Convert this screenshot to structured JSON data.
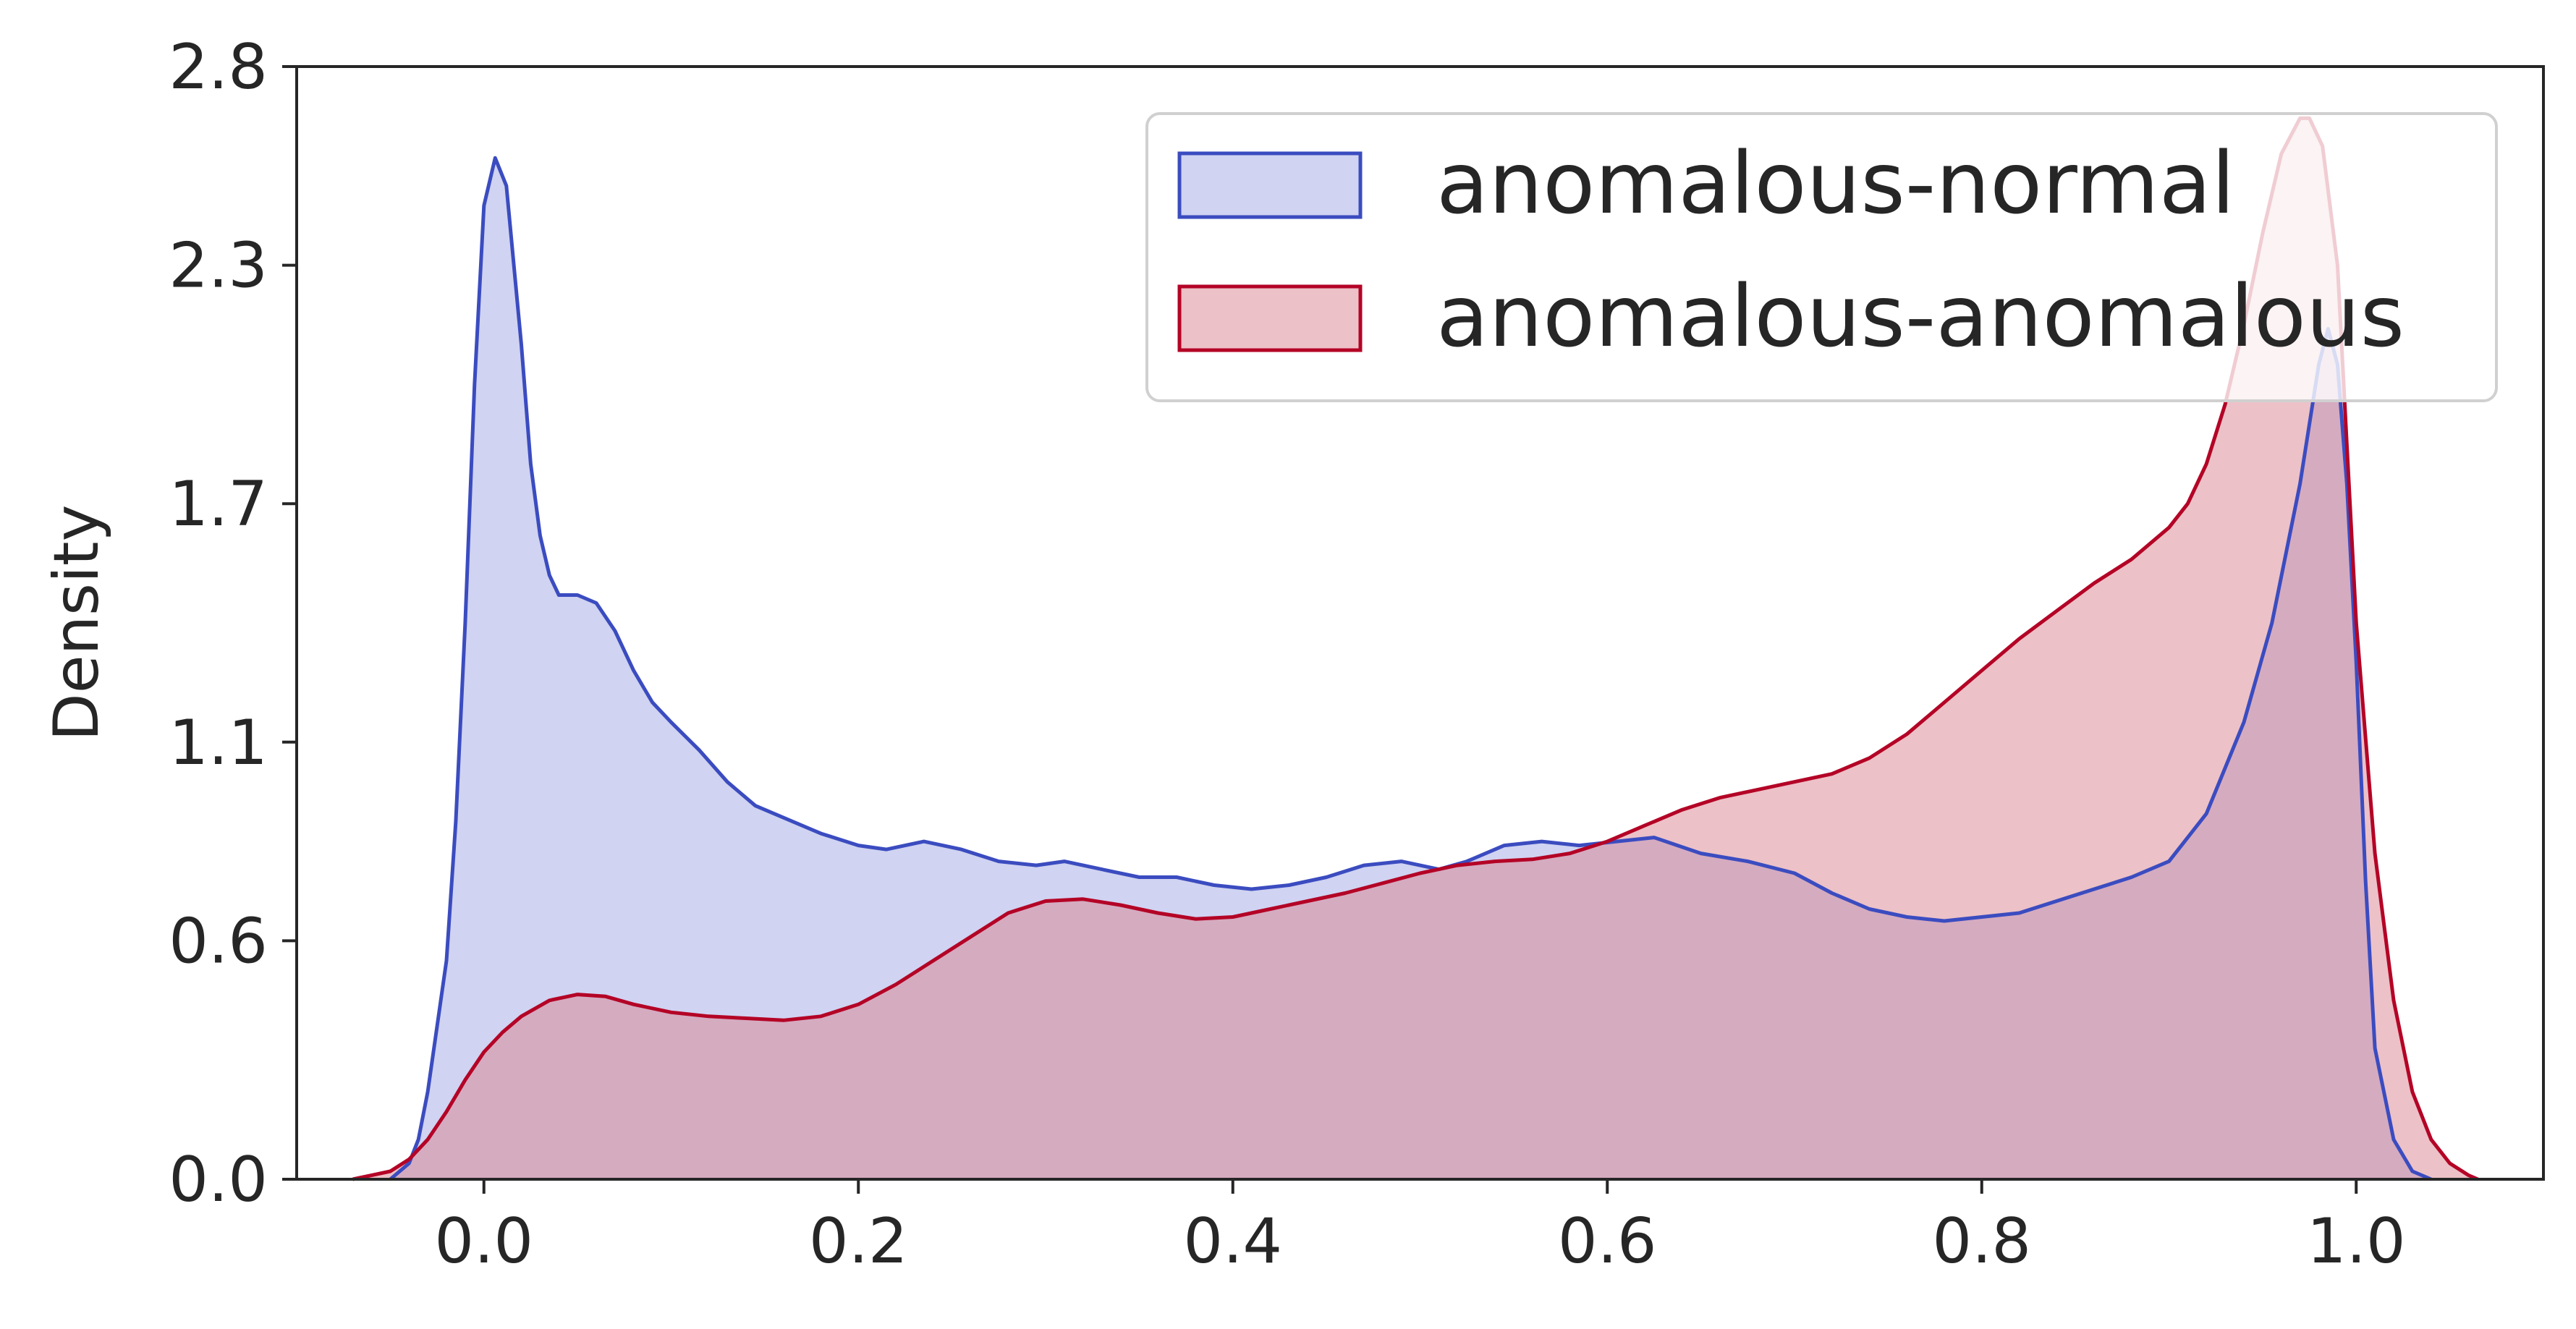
{
  "chart_data": {
    "type": "area",
    "title": "",
    "xlabel": "",
    "ylabel": "Density",
    "xlim": [
      -0.1,
      1.1
    ],
    "ylim": [
      0.0,
      2.8
    ],
    "x_ticks": [
      "0.0",
      "0.2",
      "0.4",
      "0.6",
      "0.8",
      "1.0"
    ],
    "y_ticks": [
      "0.0",
      "0.6",
      "1.1",
      "1.7",
      "2.3",
      "2.8"
    ],
    "grid": false,
    "legend_position": "top-right",
    "series": [
      {
        "name": "anomalous-normal",
        "color": "#3b4cc0",
        "fill": "#ced1f0",
        "points": [
          [
            -0.05,
            0.0
          ],
          [
            -0.04,
            0.04
          ],
          [
            -0.035,
            0.1
          ],
          [
            -0.03,
            0.22
          ],
          [
            -0.02,
            0.55
          ],
          [
            -0.015,
            0.9
          ],
          [
            -0.01,
            1.4
          ],
          [
            -0.005,
            2.0
          ],
          [
            0.0,
            2.45
          ],
          [
            0.006,
            2.57
          ],
          [
            0.012,
            2.5
          ],
          [
            0.02,
            2.1
          ],
          [
            0.025,
            1.8
          ],
          [
            0.03,
            1.62
          ],
          [
            0.035,
            1.52
          ],
          [
            0.04,
            1.47
          ],
          [
            0.05,
            1.47
          ],
          [
            0.06,
            1.45
          ],
          [
            0.07,
            1.38
          ],
          [
            0.08,
            1.28
          ],
          [
            0.09,
            1.2
          ],
          [
            0.1,
            1.15
          ],
          [
            0.115,
            1.08
          ],
          [
            0.13,
            1.0
          ],
          [
            0.145,
            0.94
          ],
          [
            0.16,
            0.91
          ],
          [
            0.18,
            0.87
          ],
          [
            0.2,
            0.84
          ],
          [
            0.215,
            0.83
          ],
          [
            0.235,
            0.85
          ],
          [
            0.255,
            0.83
          ],
          [
            0.275,
            0.8
          ],
          [
            0.295,
            0.79
          ],
          [
            0.31,
            0.8
          ],
          [
            0.33,
            0.78
          ],
          [
            0.35,
            0.76
          ],
          [
            0.37,
            0.76
          ],
          [
            0.39,
            0.74
          ],
          [
            0.41,
            0.73
          ],
          [
            0.43,
            0.74
          ],
          [
            0.45,
            0.76
          ],
          [
            0.47,
            0.79
          ],
          [
            0.49,
            0.8
          ],
          [
            0.51,
            0.78
          ],
          [
            0.525,
            0.8
          ],
          [
            0.545,
            0.84
          ],
          [
            0.565,
            0.85
          ],
          [
            0.585,
            0.84
          ],
          [
            0.605,
            0.85
          ],
          [
            0.625,
            0.86
          ],
          [
            0.65,
            0.82
          ],
          [
            0.675,
            0.8
          ],
          [
            0.7,
            0.77
          ],
          [
            0.72,
            0.72
          ],
          [
            0.74,
            0.68
          ],
          [
            0.76,
            0.66
          ],
          [
            0.78,
            0.65
          ],
          [
            0.8,
            0.66
          ],
          [
            0.82,
            0.67
          ],
          [
            0.84,
            0.7
          ],
          [
            0.86,
            0.73
          ],
          [
            0.88,
            0.76
          ],
          [
            0.9,
            0.8
          ],
          [
            0.92,
            0.92
          ],
          [
            0.94,
            1.15
          ],
          [
            0.955,
            1.4
          ],
          [
            0.97,
            1.75
          ],
          [
            0.98,
            2.05
          ],
          [
            0.985,
            2.14
          ],
          [
            0.99,
            2.05
          ],
          [
            0.995,
            1.75
          ],
          [
            1.0,
            1.3
          ],
          [
            1.005,
            0.75
          ],
          [
            1.01,
            0.33
          ],
          [
            1.02,
            0.1
          ],
          [
            1.03,
            0.02
          ],
          [
            1.04,
            0.0
          ]
        ]
      },
      {
        "name": "anomalous-anomalous",
        "color": "#b40426",
        "fill": "#d9848f",
        "points": [
          [
            -0.07,
            0.0
          ],
          [
            -0.05,
            0.02
          ],
          [
            -0.04,
            0.05
          ],
          [
            -0.03,
            0.1
          ],
          [
            -0.02,
            0.17
          ],
          [
            -0.01,
            0.25
          ],
          [
            0.0,
            0.32
          ],
          [
            0.01,
            0.37
          ],
          [
            0.02,
            0.41
          ],
          [
            0.035,
            0.45
          ],
          [
            0.05,
            0.465
          ],
          [
            0.065,
            0.46
          ],
          [
            0.08,
            0.44
          ],
          [
            0.1,
            0.42
          ],
          [
            0.12,
            0.41
          ],
          [
            0.14,
            0.405
          ],
          [
            0.16,
            0.4
          ],
          [
            0.18,
            0.41
          ],
          [
            0.2,
            0.44
          ],
          [
            0.22,
            0.49
          ],
          [
            0.24,
            0.55
          ],
          [
            0.26,
            0.61
          ],
          [
            0.28,
            0.67
          ],
          [
            0.3,
            0.7
          ],
          [
            0.32,
            0.705
          ],
          [
            0.34,
            0.69
          ],
          [
            0.36,
            0.67
          ],
          [
            0.38,
            0.655
          ],
          [
            0.4,
            0.66
          ],
          [
            0.42,
            0.68
          ],
          [
            0.44,
            0.7
          ],
          [
            0.46,
            0.72
          ],
          [
            0.48,
            0.745
          ],
          [
            0.5,
            0.77
          ],
          [
            0.52,
            0.79
          ],
          [
            0.54,
            0.8
          ],
          [
            0.56,
            0.805
          ],
          [
            0.58,
            0.82
          ],
          [
            0.6,
            0.85
          ],
          [
            0.62,
            0.89
          ],
          [
            0.64,
            0.93
          ],
          [
            0.66,
            0.96
          ],
          [
            0.68,
            0.98
          ],
          [
            0.7,
            1.0
          ],
          [
            0.72,
            1.02
          ],
          [
            0.74,
            1.06
          ],
          [
            0.76,
            1.12
          ],
          [
            0.78,
            1.2
          ],
          [
            0.8,
            1.28
          ],
          [
            0.82,
            1.36
          ],
          [
            0.84,
            1.43
          ],
          [
            0.86,
            1.5
          ],
          [
            0.88,
            1.56
          ],
          [
            0.9,
            1.64
          ],
          [
            0.91,
            1.7
          ],
          [
            0.92,
            1.8
          ],
          [
            0.93,
            1.95
          ],
          [
            0.94,
            2.15
          ],
          [
            0.95,
            2.38
          ],
          [
            0.96,
            2.58
          ],
          [
            0.97,
            2.67
          ],
          [
            0.975,
            2.67
          ],
          [
            0.982,
            2.6
          ],
          [
            0.99,
            2.3
          ],
          [
            0.995,
            1.85
          ],
          [
            1.0,
            1.4
          ],
          [
            1.01,
            0.82
          ],
          [
            1.02,
            0.45
          ],
          [
            1.03,
            0.22
          ],
          [
            1.04,
            0.1
          ],
          [
            1.05,
            0.04
          ],
          [
            1.06,
            0.01
          ],
          [
            1.065,
            0.0
          ]
        ]
      }
    ]
  }
}
